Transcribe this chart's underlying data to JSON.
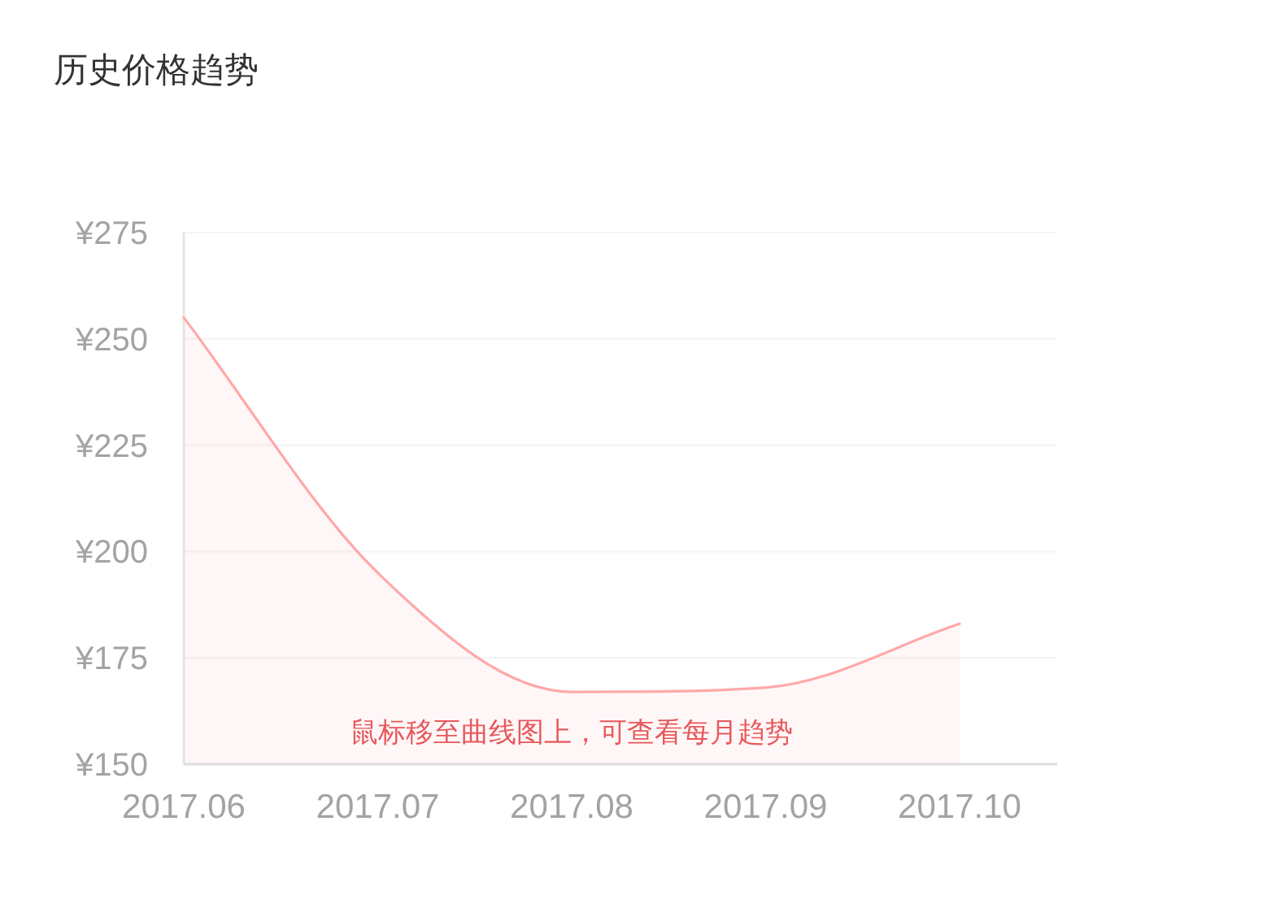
{
  "chart_data": {
    "type": "area",
    "title": "历史价格趋势",
    "categories": [
      "2017.06",
      "2017.07",
      "2017.08",
      "2017.09",
      "2017.10"
    ],
    "values": [
      255,
      195,
      167,
      168,
      183
    ],
    "color": "#ffa8a8",
    "ylim": [
      150,
      275
    ],
    "yticks": [
      {
        "value": 150,
        "label": "¥150"
      },
      {
        "value": 175,
        "label": "¥175"
      },
      {
        "value": 200,
        "label": "¥200"
      },
      {
        "value": 225,
        "label": "¥225"
      },
      {
        "value": 250,
        "label": "¥250"
      },
      {
        "value": 275,
        "label": "¥275"
      }
    ],
    "grid": "y",
    "annotations": [
      "鼠标移至曲线图上，可查看每月趋势"
    ]
  }
}
